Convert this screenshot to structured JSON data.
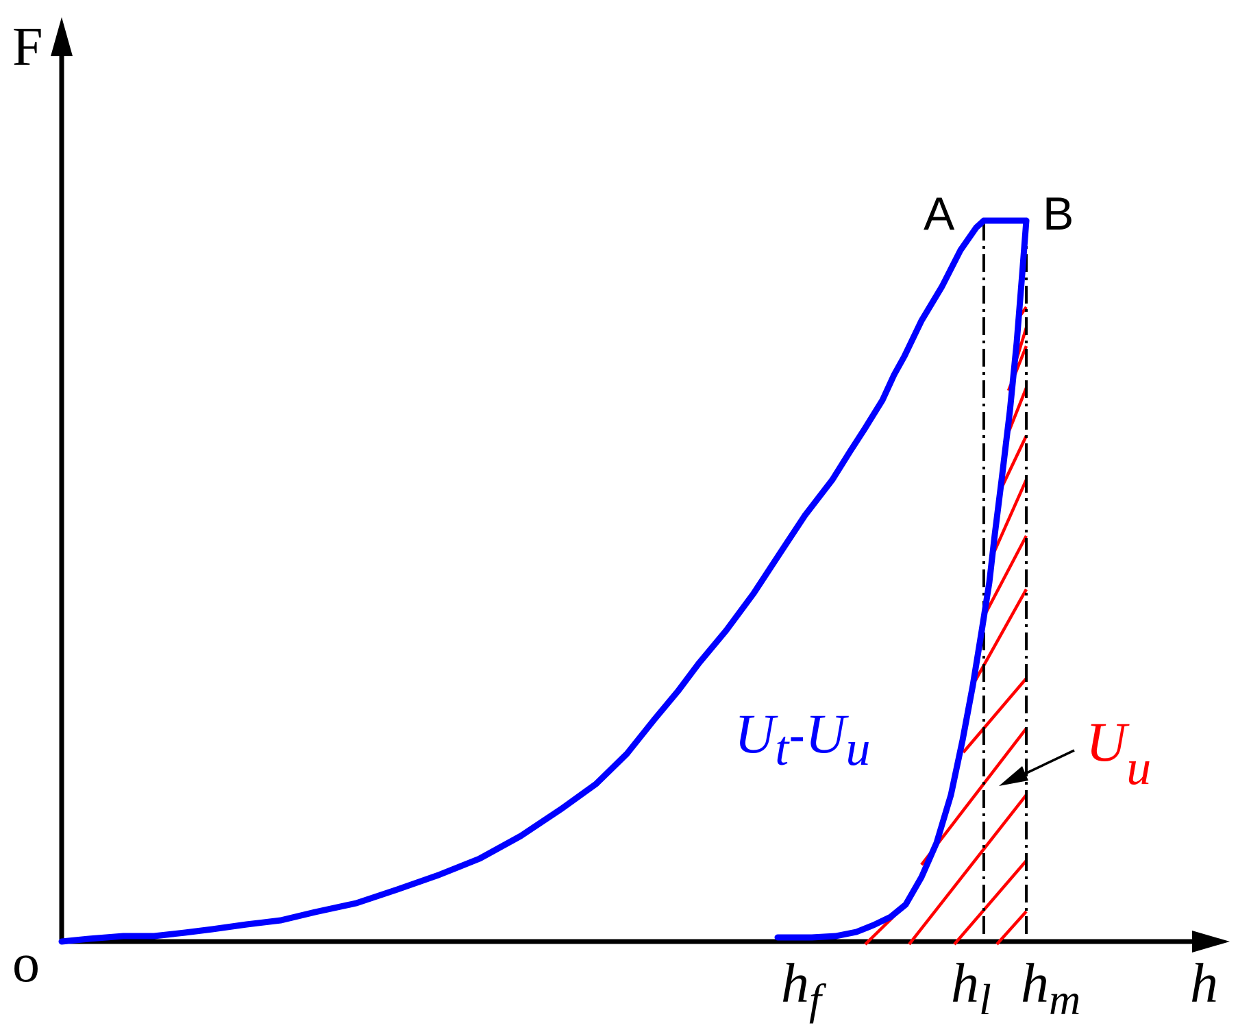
{
  "labels": {
    "y_axis": "F",
    "x_axis": "h",
    "origin": "o",
    "point_a": "A",
    "point_b": "B",
    "tick_hf_base": "h",
    "tick_hf_sub": "f",
    "tick_hl_base": "h",
    "tick_hl_sub": "l",
    "tick_hm_base": "h",
    "tick_hm_sub": "m",
    "region_blue_u1": "U",
    "region_blue_sub1": "t",
    "region_blue_dash": "-",
    "region_blue_u2": "U",
    "region_blue_sub2": "u",
    "region_red_u": "U",
    "region_red_sub": "u"
  },
  "colors": {
    "curve": "#0000ff",
    "hatch": "#ff0000",
    "axis": "#000000"
  }
}
